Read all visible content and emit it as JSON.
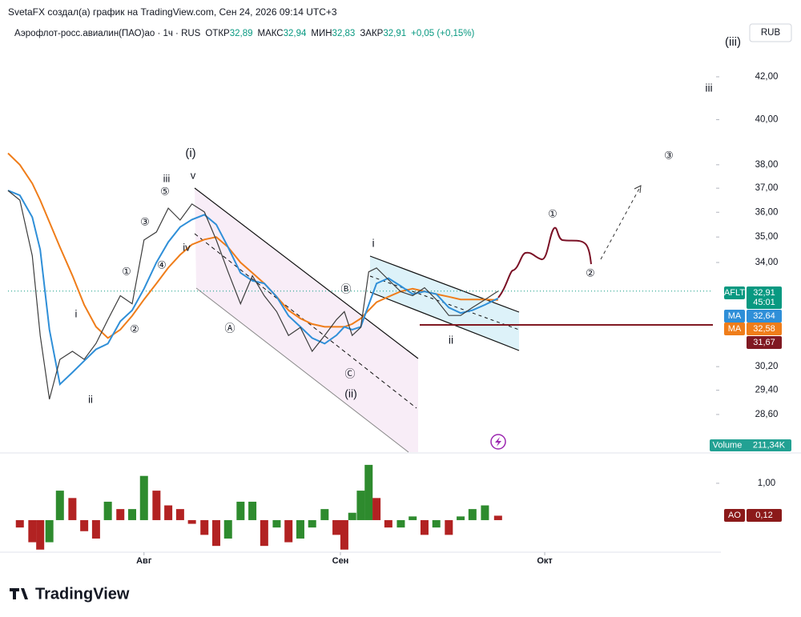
{
  "header": {
    "attribution": "SvetaFX создал(а) график на TradingView.com, Сен 24, 2026 09:14 UTC+3"
  },
  "chart_data": {
    "type": "line",
    "title": "Аэрофлот-росс.авиалин(ПАО)ао · 1ч · RUS",
    "ohlc": [
      {
        "name": "ОТКР",
        "value": 32.89,
        "label": "32,89"
      },
      {
        "name": "МАКС",
        "value": 32.94,
        "label": "32,94"
      },
      {
        "name": "МИН",
        "value": 32.83,
        "label": "32,83"
      },
      {
        "name": "ЗАКР",
        "value": 32.91,
        "label": "32,91"
      }
    ],
    "change_label": "+0,05 (+0,15%)",
    "currency": "RUB",
    "log": true,
    "grid": false,
    "xlim": [
      0,
      107.3
    ],
    "xticks": [
      {
        "value": 20.7,
        "label": "Авг"
      },
      {
        "value": 50.6,
        "label": "Сен"
      },
      {
        "value": 81.7,
        "label": "Окт"
      }
    ],
    "ylim": [
      27.4,
      44.6
    ],
    "yticks": [
      {
        "value": 28.6,
        "label": "28,60"
      },
      {
        "value": 29.4,
        "label": "29,40"
      },
      {
        "value": 30.2,
        "label": "30,20"
      },
      {
        "value": 34,
        "label": "34,00"
      },
      {
        "value": 35,
        "label": "35,00"
      },
      {
        "value": 36,
        "label": "36,00"
      },
      {
        "value": 37,
        "label": "37,00"
      },
      {
        "value": 38,
        "label": "38,00"
      },
      {
        "value": 40,
        "label": "40,00"
      },
      {
        "value": 42,
        "label": "42,00"
      }
    ],
    "x": [
      0,
      1.8,
      3.7,
      4.9,
      6.3,
      7.9,
      9.8,
      11.6,
      13.4,
      15.2,
      17.1,
      18.9,
      20.7,
      22.6,
      24.4,
      26.2,
      28,
      29.9,
      31.7,
      33.5,
      35.4,
      37.2,
      39,
      40.9,
      42.7,
      44.5,
      46.3,
      48.2,
      50,
      51.2,
      52.4,
      53.7,
      54.9,
      56.1,
      57.9,
      59.8,
      61.6,
      63.4,
      65.2,
      67.1,
      68.9,
      70.7,
      72.6,
      74.6
    ],
    "series": [
      {
        "name": "AFLT",
        "color": "#3d3d3d",
        "badge_color": "#089981",
        "last_label": "32,91",
        "countdown": "45:01",
        "values": [
          36.9,
          36.5,
          34.26,
          31.29,
          29.1,
          30.45,
          30.73,
          30.45,
          31.01,
          31.86,
          32.74,
          32.44,
          34.88,
          35.2,
          36.17,
          35.68,
          36.34,
          36.01,
          34.88,
          33.64,
          32.44,
          33.49,
          32.74,
          32.15,
          31.29,
          31.58,
          30.73,
          31.29,
          31.86,
          32.15,
          31.29,
          31.58,
          33.64,
          33.79,
          33.34,
          32.89,
          32.74,
          33.04,
          32.59,
          32.01,
          32.01,
          32.3,
          32.59,
          32.91
        ]
      },
      {
        "name": "MA",
        "color": "#2f8fd8",
        "badge_color": "#2f8fd8",
        "last_label": "32,64",
        "values": [
          36.9,
          36.7,
          35.8,
          34.5,
          31.5,
          29.6,
          30.0,
          30.4,
          30.8,
          31.0,
          31.8,
          32.2,
          33.0,
          34.0,
          34.8,
          35.4,
          35.7,
          35.9,
          35.5,
          34.6,
          33.6,
          33.3,
          33.2,
          32.7,
          32.0,
          31.6,
          31.2,
          31.0,
          31.3,
          31.6,
          31.5,
          31.6,
          32.4,
          33.2,
          33.4,
          33.1,
          32.8,
          32.9,
          32.8,
          32.3,
          32.1,
          32.2,
          32.4,
          32.64
        ]
      },
      {
        "name": "MA",
        "color": "#ef7d1a",
        "badge_color": "#ef7d1a",
        "last_label": "32,58",
        "values": [
          38.5,
          38.0,
          37.2,
          36.5,
          35.6,
          34.6,
          33.5,
          32.4,
          31.6,
          31.2,
          31.5,
          32.0,
          32.6,
          33.2,
          33.8,
          34.3,
          34.7,
          34.9,
          35.0,
          34.6,
          34.0,
          33.6,
          33.2,
          32.7,
          32.2,
          31.9,
          31.7,
          31.6,
          31.6,
          31.6,
          31.7,
          31.9,
          32.2,
          32.5,
          32.7,
          32.9,
          33.0,
          32.9,
          32.8,
          32.7,
          32.6,
          32.6,
          32.6,
          32.58
        ]
      }
    ],
    "level": {
      "value": 31.67,
      "label": "31,67",
      "color": "#801922"
    },
    "volume": {
      "name": "Volume",
      "label": "211,34K"
    },
    "ao": {
      "name": "AO",
      "last_label": "0,12",
      "up_color": "#2e8b2e",
      "down_color": "#b22222",
      "badge_color": "#8b1a1a",
      "ylim": [
        -0.87,
        1.78
      ],
      "yticks": [
        {
          "value": 1,
          "label": "1,00"
        }
      ],
      "values": [
        0.0,
        -0.2,
        -0.6,
        -0.8,
        -0.6,
        0.8,
        0.6,
        -0.3,
        -0.5,
        0.5,
        0.3,
        0.3,
        1.2,
        0.8,
        0.4,
        0.3,
        -0.1,
        -0.4,
        -0.7,
        -0.5,
        0.5,
        0.5,
        -0.7,
        -0.2,
        -0.6,
        -0.5,
        -0.2,
        0.3,
        -0.4,
        -0.8,
        0.2,
        0.8,
        1.5,
        0.6,
        -0.2,
        -0.2,
        0.1,
        -0.4,
        -0.2,
        -0.4,
        0.1,
        0.3,
        0.4,
        0.12
      ]
    },
    "annotations": [
      "(i)",
      "v",
      "iii",
      "⑤",
      "③",
      "①",
      "④",
      "iv",
      "②",
      "i",
      "ii",
      "Ⓐ",
      "Ⓑ",
      "Ⓒ",
      "(ii)",
      "i",
      "ii",
      "①",
      "②",
      "③",
      "iii",
      "(iii)"
    ]
  },
  "footer": {
    "logo": "TradingView"
  }
}
